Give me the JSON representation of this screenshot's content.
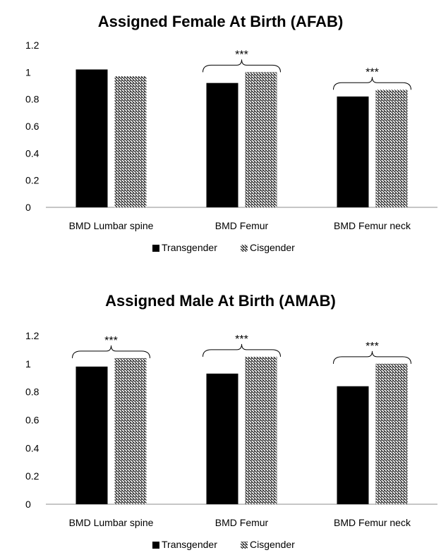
{
  "chart_data": [
    {
      "type": "bar",
      "title": "Assigned Female At Birth (AFAB)",
      "categories": [
        "BMD Lumbar spine",
        "BMD Femur",
        "BMD Femur neck"
      ],
      "series": [
        {
          "name": "Transgender",
          "values": [
            1.02,
            0.92,
            0.82
          ],
          "fill": "solid",
          "color": "#000000"
        },
        {
          "name": "Cisgender",
          "values": [
            0.97,
            1.0,
            0.87
          ],
          "fill": "hatched",
          "color": "#000000"
        }
      ],
      "ylim": [
        0,
        1.2
      ],
      "yticks": [
        "0",
        "0.2",
        "0.4",
        "0.6",
        "0.8",
        "1",
        "1.2"
      ],
      "significance": [
        "",
        "***",
        "***"
      ],
      "grid": false,
      "legend": "bottom"
    },
    {
      "type": "bar",
      "title": "Assigned Male At Birth (AMAB)",
      "categories": [
        "BMD Lumbar spine",
        "BMD Femur",
        "BMD Femur neck"
      ],
      "series": [
        {
          "name": "Transgender",
          "values": [
            0.98,
            0.93,
            0.84
          ],
          "fill": "solid",
          "color": "#000000"
        },
        {
          "name": "Cisgender",
          "values": [
            1.04,
            1.05,
            1.0
          ],
          "fill": "hatched",
          "color": "#000000"
        }
      ],
      "ylim": [
        0,
        1.2
      ],
      "yticks": [
        "0",
        "0.2",
        "0.4",
        "0.6",
        "0.8",
        "1",
        "1.2"
      ],
      "significance": [
        "***",
        "***",
        "***"
      ],
      "grid": false,
      "legend": "bottom"
    }
  ]
}
